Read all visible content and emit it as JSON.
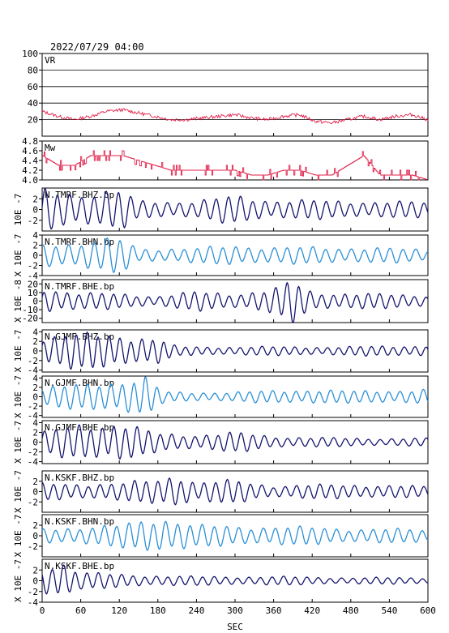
{
  "header": {
    "title": "2022/07/29  04:00"
  },
  "chart_data": {
    "type": "line",
    "title": "2022/07/29  04:00",
    "xlabel": "SEC",
    "xlim": [
      0,
      600
    ],
    "xticks": [
      0,
      60,
      120,
      180,
      240,
      300,
      360,
      420,
      480,
      540,
      600
    ],
    "colors": {
      "vr": "#e0204a",
      "mw": "#e0204a",
      "dark": "#14146e",
      "light": "#2a8fd6",
      "grid": "#000000"
    },
    "panels": [
      {
        "id": "vr",
        "label": "VR",
        "ylabel": "",
        "ylim": [
          0,
          100
        ],
        "yticks": [
          20,
          40,
          60,
          80,
          100
        ],
        "grid": true,
        "color": "vr",
        "series": {
          "name": "VR",
          "x": [
            0,
            25,
            50,
            75,
            100,
            125,
            150,
            175,
            200,
            225,
            250,
            275,
            300,
            325,
            350,
            375,
            400,
            425,
            450,
            475,
            500,
            525,
            550,
            575,
            600
          ],
          "y": [
            30,
            24,
            20,
            24,
            30,
            32,
            28,
            24,
            20,
            20,
            22,
            24,
            26,
            22,
            20,
            24,
            26,
            18,
            16,
            20,
            24,
            20,
            24,
            26,
            20
          ]
        }
      },
      {
        "id": "mw",
        "label": "Mw",
        "ylabel": "",
        "ylim": [
          4.0,
          4.8
        ],
        "yticks": [
          4.0,
          4.2,
          4.4,
          4.6,
          4.8
        ],
        "grid": false,
        "color": "mw",
        "series": {
          "name": "Mw",
          "x": [
            0,
            25,
            50,
            75,
            100,
            125,
            150,
            175,
            200,
            225,
            250,
            275,
            300,
            325,
            350,
            375,
            400,
            425,
            450,
            475,
            500,
            525,
            550,
            575,
            600
          ],
          "y": [
            4.5,
            4.3,
            4.3,
            4.5,
            4.5,
            4.5,
            4.4,
            4.3,
            4.2,
            4.2,
            4.2,
            4.2,
            4.2,
            4.1,
            4.1,
            4.2,
            4.2,
            4.1,
            4.1,
            4.3,
            4.5,
            4.1,
            4.1,
            4.1,
            4.0
          ]
        }
      },
      {
        "id": "tmrf-bhz",
        "label": "N.TMRF.BHZ.bp",
        "ylabel": "10E -7",
        "ylim": [
          -4,
          4
        ],
        "yticks": [
          -2,
          0,
          2
        ],
        "color": "dark",
        "wave": {
          "period": 19,
          "phase": 0,
          "env": [
            [
              0,
              3.8
            ],
            [
              60,
              3.2
            ],
            [
              120,
              3.6
            ],
            [
              150,
              1.6
            ],
            [
              240,
              1.6
            ],
            [
              300,
              2.6
            ],
            [
              360,
              1.8
            ],
            [
              480,
              1.6
            ],
            [
              600,
              1.4
            ]
          ]
        }
      },
      {
        "id": "tmrf-bhn",
        "label": "N.TMRF.BHN.bp",
        "ylabel": "X 10E -7",
        "ylim": [
          -4,
          4
        ],
        "yticks": [
          -4,
          -2,
          0,
          2,
          4
        ],
        "color": "light",
        "wave": {
          "period": 20,
          "phase": 1.2,
          "env": [
            [
              0,
              2.4
            ],
            [
              60,
              2.6
            ],
            [
              120,
              3.4
            ],
            [
              150,
              1.4
            ],
            [
              240,
              1.4
            ],
            [
              300,
              2.0
            ],
            [
              360,
              1.6
            ],
            [
              480,
              1.6
            ],
            [
              600,
              1.2
            ]
          ]
        }
      },
      {
        "id": "tmrf-bhe",
        "label": "N.TMRF.BHE.bp",
        "ylabel": "X 10E -8",
        "ylim": [
          -25,
          25
        ],
        "yticks": [
          -20,
          -10,
          0,
          10,
          20
        ],
        "color": "dark",
        "wave": {
          "period": 18,
          "phase": 0.5,
          "env": [
            [
              0,
              17
            ],
            [
              60,
              9
            ],
            [
              120,
              9
            ],
            [
              180,
              6
            ],
            [
              240,
              11
            ],
            [
              300,
              9
            ],
            [
              360,
              14
            ],
            [
              390,
              24
            ],
            [
              420,
              11
            ],
            [
              480,
              9
            ],
            [
              600,
              7
            ]
          ]
        }
      },
      {
        "id": "gjmf-bhz",
        "label": "N.GJMF.BHZ.bp",
        "ylabel": "X 10E -7",
        "ylim": [
          -4.4,
          4.4
        ],
        "yticks": [
          -4,
          -2,
          0,
          2,
          4
        ],
        "color": "dark",
        "wave": {
          "period": 17,
          "phase": 0.8,
          "env": [
            [
              0,
              3.0
            ],
            [
              40,
              3.6
            ],
            [
              120,
              3.4
            ],
            [
              180,
              2.6
            ],
            [
              210,
              0.9
            ],
            [
              360,
              0.9
            ],
            [
              480,
              0.9
            ],
            [
              600,
              1.2
            ]
          ]
        }
      },
      {
        "id": "gjmf-bhn",
        "label": "N.GJMF.BHN.bp",
        "ylabel": "X 10E -7",
        "ylim": [
          -4.4,
          4.4
        ],
        "yticks": [
          -4,
          -2,
          0,
          2,
          4
        ],
        "color": "light",
        "wave": {
          "period": 18,
          "phase": 2.0,
          "env": [
            [
              0,
              2.0
            ],
            [
              60,
              2.6
            ],
            [
              120,
              3.6
            ],
            [
              160,
              4.2
            ],
            [
              190,
              1.0
            ],
            [
              300,
              1.0
            ],
            [
              420,
              1.6
            ],
            [
              480,
              1.2
            ],
            [
              600,
              1.6
            ]
          ]
        }
      },
      {
        "id": "gjmf-bhe",
        "label": "N.GJMF.BHE.bp",
        "ylabel": "X 10E -7",
        "ylim": [
          -4.4,
          4.4
        ],
        "yticks": [
          -4,
          -2,
          0,
          2,
          4
        ],
        "color": "dark",
        "wave": {
          "period": 18,
          "phase": 0.3,
          "env": [
            [
              0,
              2.0
            ],
            [
              60,
              3.8
            ],
            [
              120,
              4.0
            ],
            [
              180,
              1.8
            ],
            [
              240,
              1.6
            ],
            [
              300,
              2.0
            ],
            [
              360,
              1.2
            ],
            [
              480,
              0.8
            ],
            [
              600,
              0.8
            ]
          ]
        }
      },
      {
        "id": "kskf-bhz",
        "label": "N.KSKF.BHZ.bp",
        "ylabel": "X 10E -7",
        "ylim": [
          -4,
          4
        ],
        "yticks": [
          -2,
          0,
          2
        ],
        "color": "dark",
        "wave": {
          "period": 18,
          "phase": 1.6,
          "env": [
            [
              0,
              1.6
            ],
            [
              120,
              1.6
            ],
            [
              180,
              2.4
            ],
            [
              210,
              3.6
            ],
            [
              240,
              1.8
            ],
            [
              300,
              2.2
            ],
            [
              360,
              1.2
            ],
            [
              480,
              1.4
            ],
            [
              600,
              1.0
            ]
          ]
        }
      },
      {
        "id": "kskf-bhn",
        "label": "N.KSKF.BHN.bp",
        "ylabel": "X 10E -7",
        "ylim": [
          -4,
          4
        ],
        "yticks": [
          -2,
          0,
          2
        ],
        "color": "light",
        "wave": {
          "period": 19,
          "phase": 0.9,
          "env": [
            [
              0,
              1.4
            ],
            [
              120,
              2.0
            ],
            [
              180,
              3.6
            ],
            [
              210,
              3.0
            ],
            [
              240,
              2.0
            ],
            [
              300,
              1.8
            ],
            [
              360,
              1.8
            ],
            [
              480,
              1.4
            ],
            [
              600,
              1.2
            ]
          ]
        }
      },
      {
        "id": "kskf-bhe",
        "label": "N.KSKF.BHE.bp",
        "ylabel": "X 10E -7",
        "ylim": [
          -4,
          4
        ],
        "yticks": [
          -4,
          -2,
          0,
          2
        ],
        "color": "dark",
        "wave": {
          "period": 18,
          "phase": 2.4,
          "env": [
            [
              0,
              2.6
            ],
            [
              30,
              3.8
            ],
            [
              60,
              1.6
            ],
            [
              120,
              1.2
            ],
            [
              240,
              0.8
            ],
            [
              360,
              0.8
            ],
            [
              480,
              0.6
            ],
            [
              600,
              0.6
            ]
          ]
        }
      }
    ]
  }
}
